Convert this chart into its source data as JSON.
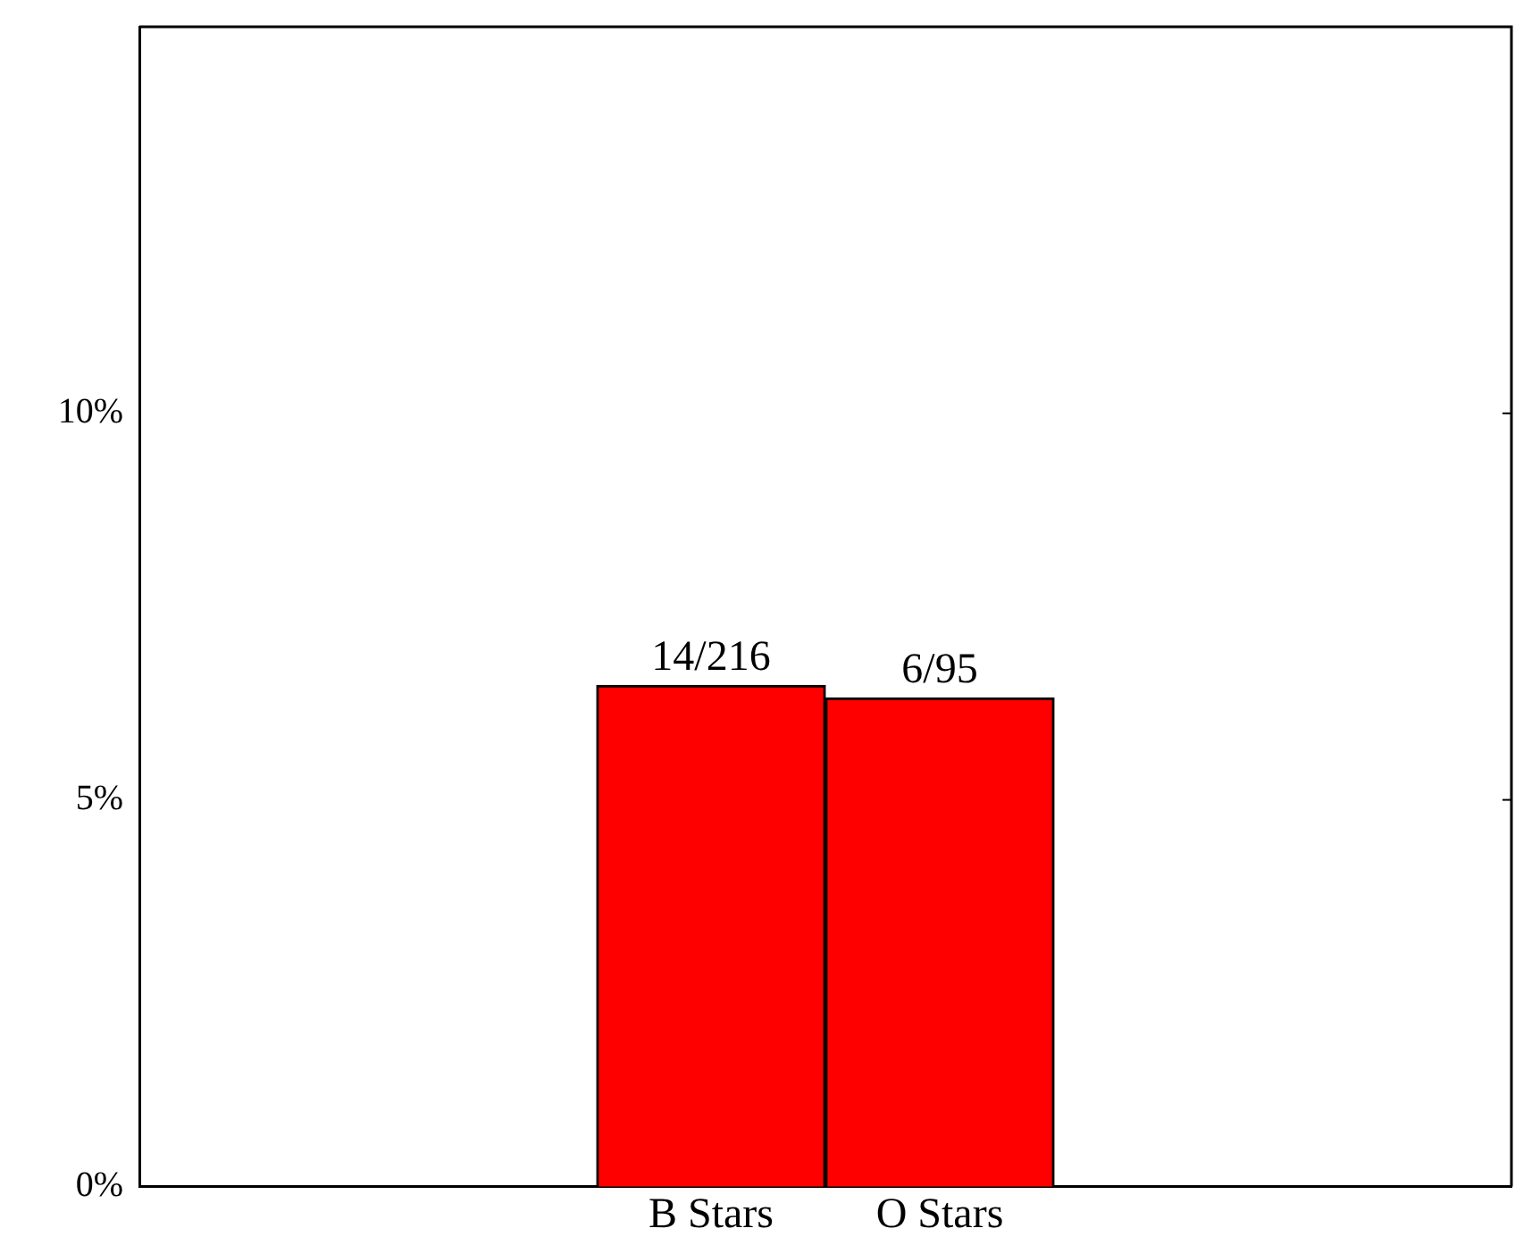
{
  "chart_data": {
    "type": "bar",
    "categories": [
      null,
      null,
      "B Stars",
      "O Stars",
      null,
      null
    ],
    "values": [
      null,
      null,
      6.48,
      6.32,
      null,
      null
    ],
    "color": "#ff0000",
    "value_labels": [
      null,
      null,
      "14/216",
      "6/95",
      null,
      null
    ],
    "ylim": [
      0,
      15
    ],
    "yticks": [
      {
        "value": 0,
        "label": "0%"
      },
      {
        "value": 5,
        "label": "5%"
      },
      {
        "value": 10,
        "label": "10%"
      }
    ],
    "grid": false,
    "legend": false
  }
}
